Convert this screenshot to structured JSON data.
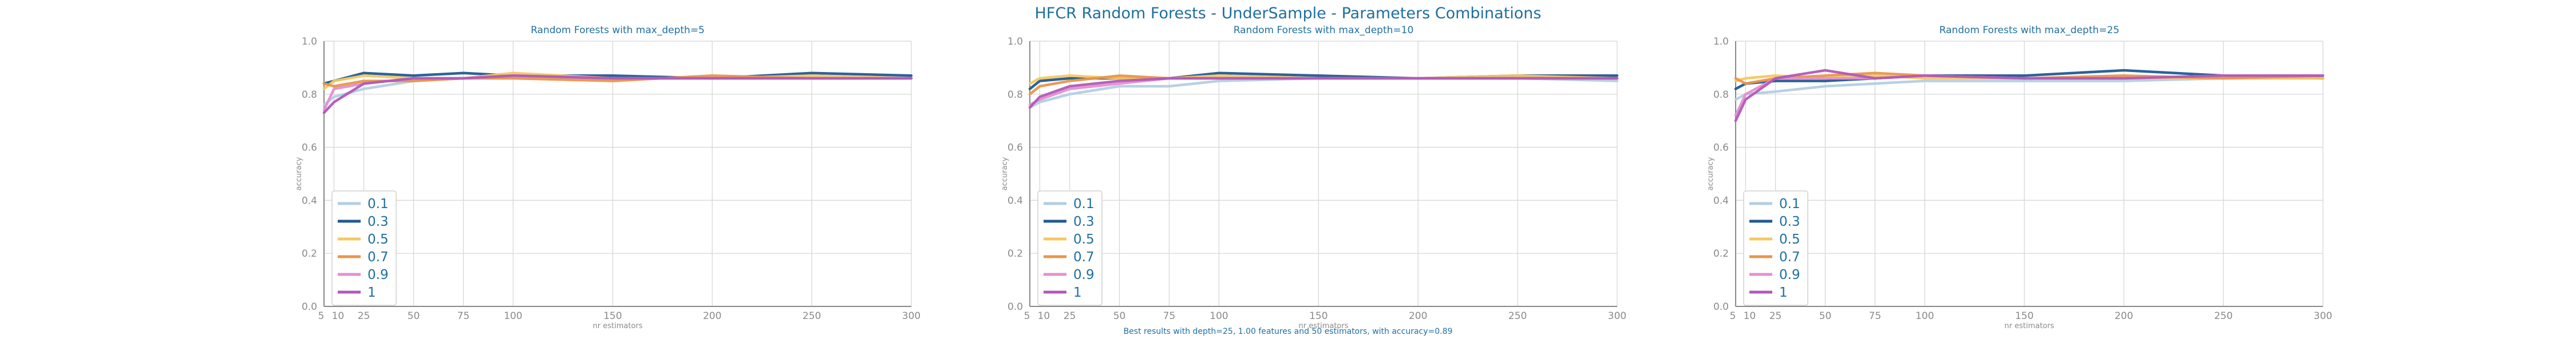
{
  "figure": {
    "title": "HFCR Random Forests - UnderSample - Parameters Combinations",
    "footnote": "Best results with depth=25, 1.00 features and 50 estimators, with accuracy=0.89"
  },
  "chart_data": [
    {
      "type": "line",
      "title": "Random Forests with max_depth=5",
      "xlabel": "nr estimators",
      "ylabel": "accuracy",
      "x": [
        5,
        10,
        25,
        50,
        75,
        100,
        150,
        200,
        250,
        300
      ],
      "xticks": [
        "5",
        "10",
        "25",
        "50",
        "75",
        "100",
        "150",
        "200",
        "250",
        "300"
      ],
      "xlim": [
        5,
        300
      ],
      "ylim": [
        0.0,
        1.0
      ],
      "yticks": [
        "0.0",
        "0.2",
        "0.4",
        "0.6",
        "0.8",
        "1.0"
      ],
      "grid": true,
      "legend_position": "lower-left",
      "series": [
        {
          "name": "0.1",
          "color": "#b3cde3",
          "values": [
            0.76,
            0.79,
            0.82,
            0.85,
            0.86,
            0.86,
            0.86,
            0.86,
            0.86,
            0.86
          ]
        },
        {
          "name": "0.3",
          "color": "#1f5a96",
          "values": [
            0.84,
            0.85,
            0.88,
            0.87,
            0.88,
            0.87,
            0.87,
            0.86,
            0.88,
            0.87
          ]
        },
        {
          "name": "0.5",
          "color": "#f6c85f",
          "values": [
            0.82,
            0.85,
            0.87,
            0.86,
            0.86,
            0.88,
            0.86,
            0.86,
            0.87,
            0.86
          ]
        },
        {
          "name": "0.7",
          "color": "#e8964a",
          "values": [
            0.84,
            0.83,
            0.85,
            0.85,
            0.86,
            0.86,
            0.85,
            0.87,
            0.86,
            0.86
          ]
        },
        {
          "name": "0.9",
          "color": "#e58fd0",
          "values": [
            0.74,
            0.82,
            0.84,
            0.86,
            0.86,
            0.87,
            0.86,
            0.86,
            0.86,
            0.86
          ]
        },
        {
          "name": "1",
          "color": "#b259b8",
          "values": [
            0.73,
            0.77,
            0.84,
            0.86,
            0.86,
            0.87,
            0.86,
            0.86,
            0.86,
            0.86
          ]
        }
      ]
    },
    {
      "type": "line",
      "title": "Random Forests with max_depth=10",
      "xlabel": "nr estimators",
      "ylabel": "accuracy",
      "x": [
        5,
        10,
        25,
        50,
        75,
        100,
        150,
        200,
        250,
        300
      ],
      "xticks": [
        "5",
        "10",
        "25",
        "50",
        "75",
        "100",
        "150",
        "200",
        "250",
        "300"
      ],
      "xlim": [
        5,
        300
      ],
      "ylim": [
        0.0,
        1.0
      ],
      "yticks": [
        "0.0",
        "0.2",
        "0.4",
        "0.6",
        "0.8",
        "1.0"
      ],
      "grid": true,
      "legend_position": "lower-left",
      "series": [
        {
          "name": "0.1",
          "color": "#b3cde3",
          "values": [
            0.75,
            0.77,
            0.8,
            0.83,
            0.83,
            0.85,
            0.86,
            0.86,
            0.86,
            0.85
          ]
        },
        {
          "name": "0.3",
          "color": "#1f5a96",
          "values": [
            0.82,
            0.85,
            0.86,
            0.86,
            0.86,
            0.88,
            0.87,
            0.86,
            0.87,
            0.87
          ]
        },
        {
          "name": "0.5",
          "color": "#f6c85f",
          "values": [
            0.84,
            0.86,
            0.87,
            0.86,
            0.86,
            0.87,
            0.86,
            0.86,
            0.87,
            0.86
          ]
        },
        {
          "name": "0.7",
          "color": "#e8964a",
          "values": [
            0.8,
            0.83,
            0.85,
            0.87,
            0.86,
            0.86,
            0.86,
            0.86,
            0.86,
            0.86
          ]
        },
        {
          "name": "0.9",
          "color": "#e58fd0",
          "values": [
            0.76,
            0.78,
            0.82,
            0.84,
            0.86,
            0.86,
            0.86,
            0.86,
            0.86,
            0.86
          ]
        },
        {
          "name": "1",
          "color": "#b259b8",
          "values": [
            0.75,
            0.79,
            0.83,
            0.85,
            0.86,
            0.86,
            0.86,
            0.86,
            0.86,
            0.86
          ]
        }
      ]
    },
    {
      "type": "line",
      "title": "Random Forests with max_depth=25",
      "xlabel": "nr estimators",
      "ylabel": "accuracy",
      "x": [
        5,
        10,
        25,
        50,
        75,
        100,
        150,
        200,
        250,
        300
      ],
      "xticks": [
        "5",
        "10",
        "25",
        "50",
        "75",
        "100",
        "150",
        "200",
        "250",
        "300"
      ],
      "xlim": [
        5,
        300
      ],
      "ylim": [
        0.0,
        1.0
      ],
      "yticks": [
        "0.0",
        "0.2",
        "0.4",
        "0.6",
        "0.8",
        "1.0"
      ],
      "grid": true,
      "legend_position": "lower-left",
      "series": [
        {
          "name": "0.1",
          "color": "#b3cde3",
          "values": [
            0.78,
            0.8,
            0.81,
            0.83,
            0.84,
            0.85,
            0.85,
            0.85,
            0.86,
            0.86
          ]
        },
        {
          "name": "0.3",
          "color": "#1f5a96",
          "values": [
            0.82,
            0.84,
            0.85,
            0.85,
            0.86,
            0.87,
            0.87,
            0.89,
            0.87,
            0.86
          ]
        },
        {
          "name": "0.5",
          "color": "#f6c85f",
          "values": [
            0.85,
            0.86,
            0.87,
            0.86,
            0.87,
            0.86,
            0.86,
            0.86,
            0.86,
            0.86
          ]
        },
        {
          "name": "0.7",
          "color": "#e8964a",
          "values": [
            0.86,
            0.84,
            0.86,
            0.87,
            0.88,
            0.87,
            0.86,
            0.87,
            0.86,
            0.87
          ]
        },
        {
          "name": "0.9",
          "color": "#e58fd0",
          "values": [
            0.72,
            0.8,
            0.86,
            0.86,
            0.86,
            0.87,
            0.86,
            0.86,
            0.87,
            0.87
          ]
        },
        {
          "name": "1",
          "color": "#b259b8",
          "values": [
            0.7,
            0.78,
            0.86,
            0.89,
            0.86,
            0.87,
            0.86,
            0.86,
            0.87,
            0.87
          ]
        }
      ]
    }
  ]
}
